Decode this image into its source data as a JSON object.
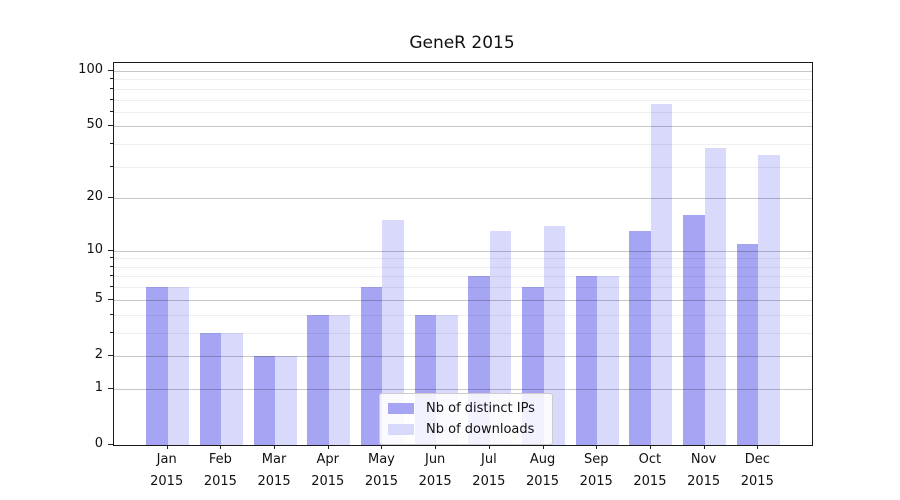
{
  "title": "GeneR 2015",
  "chart_data": {
    "type": "bar",
    "title": "GeneR 2015",
    "categories": [
      "Jan",
      "Feb",
      "Mar",
      "Apr",
      "May",
      "Jun",
      "Jul",
      "Aug",
      "Sep",
      "Oct",
      "Nov",
      "Dec"
    ],
    "category_year": "2015",
    "series": [
      {
        "name": "Nb of distinct IPs",
        "color": "#a5a5f4",
        "values": [
          6,
          3,
          2,
          4,
          6,
          4,
          7,
          6,
          7,
          13,
          16,
          11
        ]
      },
      {
        "name": "Nb of downloads",
        "color": "#d9d9fb",
        "values": [
          6,
          3,
          2,
          4,
          15,
          4,
          13,
          14,
          7,
          66,
          38,
          35
        ]
      }
    ],
    "xlabel": "",
    "ylabel": "",
    "yscale": "log1p",
    "ylim": [
      0,
      111
    ],
    "yticks_major": [
      0,
      1,
      2,
      5,
      10,
      20,
      50,
      100
    ],
    "yticks_minor": [
      3,
      4,
      6,
      7,
      8,
      9,
      30,
      40,
      60,
      70,
      80,
      90
    ],
    "grid": true,
    "legend_position": "lower center"
  }
}
